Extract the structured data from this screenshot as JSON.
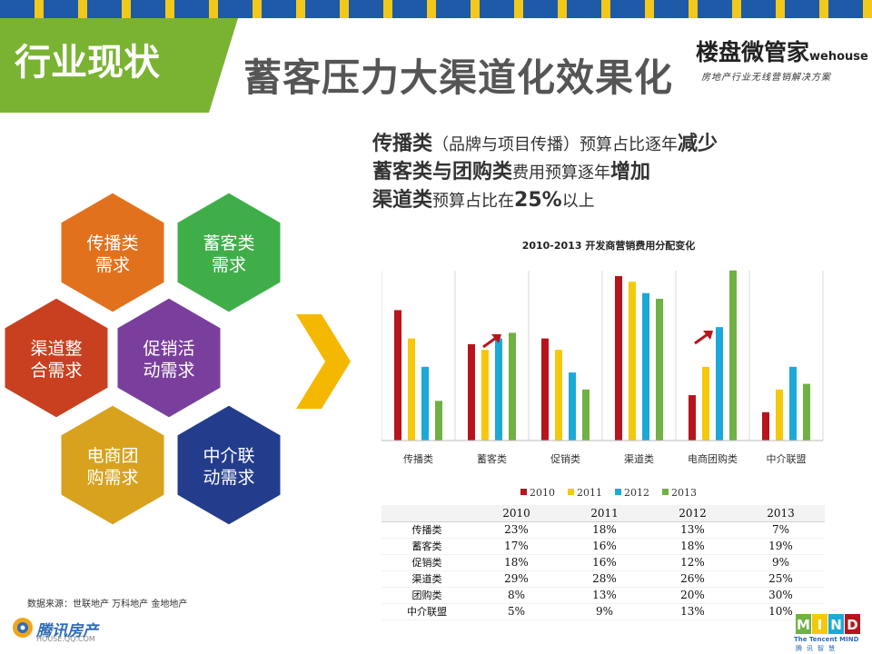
{
  "header": {
    "section_title": "行业现状",
    "main_title": "蓄客压力大渠道化效果化",
    "logo_text": "楼盘微管家",
    "logo_en": "wehouse",
    "logo_slogan": "房地产行业无线营销解决方案"
  },
  "summary": {
    "line1_bold1": "传播类",
    "line1_rest": "（品牌与项目传播）预算占比逐年",
    "line1_bold2": "减少",
    "line2_bold1": "蓄客类与团购类",
    "line2_rest": "费用预算逐年",
    "line2_bold2": "增加",
    "line3_bold1": "渠道类",
    "line3_rest": "预算占比在",
    "line3_bold2": "25%",
    "line3_end": "以上"
  },
  "hexagons": [
    {
      "label1": "传播类",
      "label2": "需求",
      "color": "#e2711d"
    },
    {
      "label1": "蓄客类",
      "label2": "需求",
      "color": "#3fae49"
    },
    {
      "label1": "渠道整",
      "label2": "合需求",
      "color": "#c8401f"
    },
    {
      "label1": "促销活",
      "label2": "动需求",
      "color": "#7a3f9d"
    },
    {
      "label1": "电商团",
      "label2": "购需求",
      "color": "#d8a21e"
    },
    {
      "label1": "中介联",
      "label2": "动需求",
      "color": "#233d8c"
    }
  ],
  "arrow_color": "#f5b800",
  "chart_data": {
    "type": "bar",
    "title": "2010-2013 开发商营销费用分配变化",
    "categories": [
      "传播类",
      "蓄客类",
      "促销类",
      "渠道类",
      "电商团购类",
      "中介联盟"
    ],
    "series": [
      {
        "name": "2010",
        "color": "#b8141c",
        "values": [
          23,
          17,
          18,
          29,
          8,
          5
        ]
      },
      {
        "name": "2011",
        "color": "#f5c90a",
        "values": [
          18,
          16,
          16,
          28,
          13,
          9
        ]
      },
      {
        "name": "2012",
        "color": "#1ca9d8",
        "values": [
          13,
          18,
          12,
          26,
          20,
          13
        ]
      },
      {
        "name": "2013",
        "color": "#6fb143",
        "values": [
          7,
          19,
          9,
          25,
          30,
          10
        ]
      }
    ],
    "ylim": [
      0,
      33
    ],
    "legend": "bottom",
    "grid": false,
    "annotation_color": "#b8141c"
  },
  "table": {
    "row_labels": [
      "传播类",
      "蓄客类",
      "促销类",
      "渠道类",
      "团购类",
      "中介联盟"
    ],
    "columns": [
      "2010",
      "2011",
      "2012",
      "2013"
    ],
    "rows": [
      [
        "23%",
        "18%",
        "13%",
        "7%"
      ],
      [
        "17%",
        "16%",
        "18%",
        "19%"
      ],
      [
        "18%",
        "16%",
        "12%",
        "9%"
      ],
      [
        "29%",
        "28%",
        "26%",
        "25%"
      ],
      [
        "8%",
        "13%",
        "20%",
        "30%"
      ],
      [
        "5%",
        "9%",
        "13%",
        "10%"
      ]
    ]
  },
  "footer": {
    "source": "数据来源：世联地产 万科地产 金地地产",
    "brand_name": "腾讯房产",
    "brand_sub": "HOUSE.QQ.COM",
    "mind_logo": "MIND",
    "mind_sub": "The Tencent MIND",
    "mind_cn": "腾讯智慧"
  }
}
